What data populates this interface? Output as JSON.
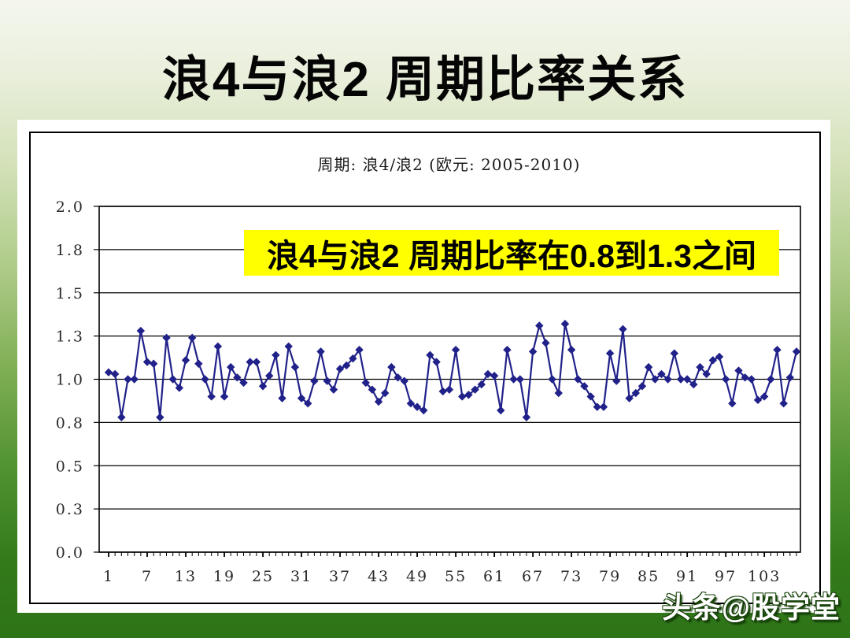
{
  "slide": {
    "title": "浪4与浪2 周期比率关系",
    "watermark": "头条@股学堂",
    "annotation": {
      "text": "浪4与浪2 周期比率在0.8到1.3之间",
      "bg_color": "#ffff00",
      "text_color": "#000000"
    },
    "colors": {
      "background_top": "#f4f6ee",
      "background_bottom": "#2e7418",
      "panel_bg": "#ffffff",
      "panel_border": "#000000"
    }
  },
  "chart_data": {
    "type": "line",
    "title": "周期: 浪4/浪2 (欧元: 2005-2010)",
    "xlabel": "",
    "ylabel": "",
    "legend_position": "none",
    "grid": true,
    "marker": "diamond",
    "series_color": "#21218a",
    "ylim": [
      0,
      2
    ],
    "y_tick_labels": [
      "2.0",
      "1.8",
      "1.5",
      "1.3",
      "1.0",
      "0.8",
      "0.5",
      "0.3",
      "0.0"
    ],
    "y_tick_values": [
      2.0,
      1.75,
      1.5,
      1.25,
      1.0,
      0.75,
      0.5,
      0.25,
      0.0
    ],
    "x_start": 1,
    "x_step": 1,
    "x_label_interval": 6,
    "x_tick_labels": [
      "1",
      "7",
      "13",
      "19",
      "25",
      "31",
      "37",
      "43",
      "49",
      "55",
      "61",
      "67",
      "73",
      "79",
      "85",
      "91",
      "97",
      "103"
    ],
    "values": [
      1.04,
      1.03,
      0.78,
      1.0,
      1.0,
      1.28,
      1.1,
      1.09,
      0.78,
      1.24,
      1.0,
      0.95,
      1.11,
      1.24,
      1.09,
      1.0,
      0.9,
      1.19,
      0.9,
      1.07,
      1.01,
      0.98,
      1.1,
      1.1,
      0.96,
      1.02,
      1.14,
      0.89,
      1.19,
      1.07,
      0.89,
      0.86,
      0.99,
      1.16,
      0.99,
      0.94,
      1.06,
      1.08,
      1.12,
      1.17,
      0.98,
      0.94,
      0.87,
      0.92,
      1.07,
      1.01,
      0.99,
      0.86,
      0.84,
      0.82,
      1.14,
      1.1,
      0.93,
      0.94,
      1.17,
      0.9,
      0.91,
      0.94,
      0.97,
      1.03,
      1.02,
      0.82,
      1.17,
      1.0,
      1.0,
      0.78,
      1.16,
      1.31,
      1.21,
      1.0,
      0.92,
      1.32,
      1.17,
      1.0,
      0.96,
      0.9,
      0.84,
      0.84,
      1.15,
      0.99,
      1.29,
      0.89,
      0.92,
      0.96,
      1.07,
      1.0,
      1.03,
      1.0,
      1.15,
      1.0,
      1.0,
      0.97,
      1.07,
      1.03,
      1.11,
      1.13,
      1.0,
      0.86,
      1.05,
      1.01,
      1.0,
      0.88,
      0.9,
      1.0,
      1.17,
      0.86,
      1.01,
      1.16
    ]
  }
}
